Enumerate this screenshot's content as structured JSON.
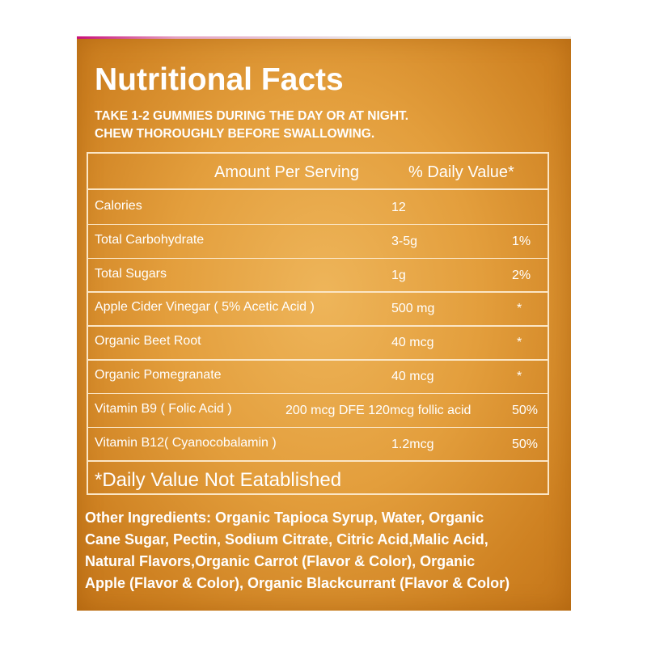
{
  "title": "Nutritional Facts",
  "instructions": [
    "TAKE 1-2 GUMMIES DURING THE DAY OR AT NIGHT.",
    "CHEW THOROUGHLY BEFORE SWALLOWING."
  ],
  "table": {
    "header": {
      "amount": "Amount Per Serving",
      "daily_value": "% Daily Value*"
    },
    "rows": [
      {
        "name": "Calories",
        "amount": "12"
      },
      {
        "name": "Total Carbohydrate",
        "amount": "3-5g",
        "daily_value": "1%"
      },
      {
        "name": "Total Sugars",
        "amount": "1g",
        "daily_value": "2%"
      },
      {
        "name": "Apple Cider Vinegar ( 5% Acetic Acid )",
        "amount": "500 mg",
        "daily_value": "*"
      },
      {
        "name": "Organic Beet Root",
        "amount": "40 mcg",
        "daily_value": "*"
      },
      {
        "name": "Organic Pomegranate",
        "amount": "40 mcg",
        "daily_value": "*"
      },
      {
        "name": "Vitamin B9 ( Folic Acid )",
        "amount": "200 mcg DFE 120mcg follic acid",
        "daily_value": "50%"
      },
      {
        "name": "Vitamin B12( Cyanocobalamin )",
        "amount": "1.2mcg",
        "daily_value": "50%"
      }
    ],
    "footnote": "*Daily Value Not Eatablished"
  },
  "other_ingredients": [
    "Other Ingredients: Organic Tapioca Syrup, Water, Organic",
    "Cane Sugar, Pectin, Sodium Citrate, Citric Acid,Malic Acid,",
    "Natural Flavors,Organic Carrot (Flavor & Color), Organic",
    "Apple (Flavor & Color), Organic Blackcurrant (Flavor & Color)"
  ]
}
